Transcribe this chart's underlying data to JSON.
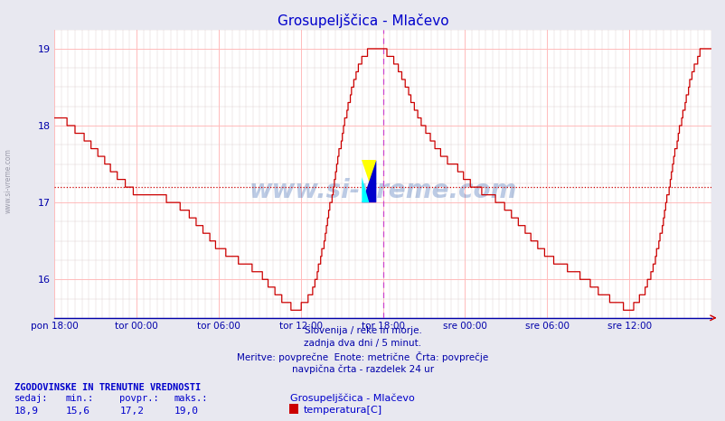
{
  "title": "Grosupeljščica - Mlačevo",
  "title_color": "#0000cc",
  "bg_color": "#e8e8f0",
  "plot_bg_color": "#ffffff",
  "line_color": "#cc0000",
  "avg_line_color": "#cc0000",
  "avg_line_value": 17.2,
  "vline_color": "#cc44cc",
  "vline_pos": 0.5,
  "grid_color_major": "#ffbbbb",
  "grid_color_minor": "#ddcccc",
  "ymin": 15.5,
  "ymax": 19.25,
  "yticks": [
    16,
    17,
    18,
    19
  ],
  "xtick_positions": [
    0.0,
    0.125,
    0.25,
    0.375,
    0.5,
    0.625,
    0.75,
    0.875
  ],
  "xtick_labels": [
    "pon 18:00",
    "tor 00:00",
    "tor 06:00",
    "tor 12:00",
    "tor 18:00",
    "sre 00:00",
    "sre 06:00",
    "sre 12:00"
  ],
  "watermark_text": "www.si-vreme.com",
  "watermark_color": "#2255aa",
  "watermark_alpha": 0.3,
  "footer_lines": [
    "Slovenija / reke in morje.",
    "zadnja dva dni / 5 minut.",
    "Meritve: povprečne  Enote: metrične  Črta: povprečje",
    "navpična črta - razdelek 24 ur"
  ],
  "footer_color": "#0000aa",
  "stats_label": "ZGODOVINSKE IN TRENUTNE VREDNOSTI",
  "stats_color": "#0000cc",
  "stat_keys": [
    "sedaj:",
    "min.:",
    "povpr.:",
    "maks.:"
  ],
  "stat_vals": [
    "18,9",
    "15,6",
    "17,2",
    "19,0"
  ],
  "legend_title": "Grosupeljščica - Mlačevo",
  "legend_series": "temperatura[C]",
  "legend_color": "#cc0000",
  "sidebar_text": "www.si-vreme.com",
  "sidebar_color": "#888899",
  "n_points": 576
}
